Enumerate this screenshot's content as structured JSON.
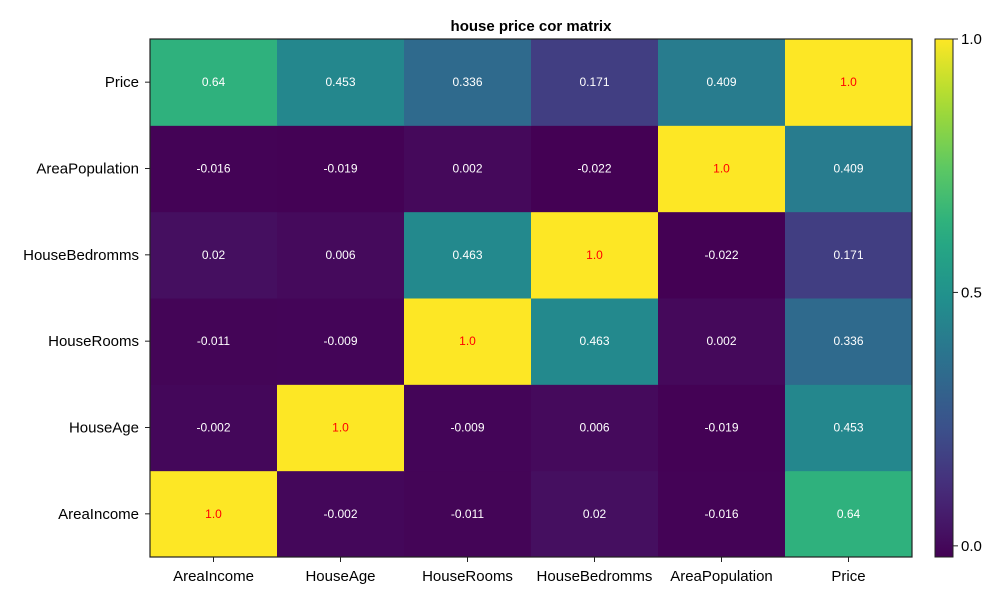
{
  "chart_data": {
    "type": "heatmap",
    "title": "house price cor matrix",
    "x_categories": [
      "AreaIncome",
      "HouseAge",
      "HouseRooms",
      "HouseBedromms",
      "AreaPopulation",
      "Price"
    ],
    "y_categories": [
      "AreaIncome",
      "HouseAge",
      "HouseRooms",
      "HouseBedromms",
      "AreaPopulation",
      "Price"
    ],
    "values": [
      [
        1.0,
        -0.002,
        -0.011,
        0.02,
        -0.016,
        0.64
      ],
      [
        -0.002,
        1.0,
        -0.009,
        0.006,
        -0.019,
        0.453
      ],
      [
        -0.011,
        -0.009,
        1.0,
        0.463,
        0.002,
        0.336
      ],
      [
        0.02,
        0.006,
        0.463,
        1.0,
        -0.022,
        0.171
      ],
      [
        -0.016,
        -0.019,
        0.002,
        -0.022,
        1.0,
        0.409
      ],
      [
        0.64,
        0.453,
        0.336,
        0.171,
        0.409,
        1.0
      ]
    ],
    "value_labels": [
      [
        "1.0",
        "-0.002",
        "-0.011",
        "0.02",
        "-0.016",
        "0.64"
      ],
      [
        "-0.002",
        "1.0",
        "-0.009",
        "0.006",
        "-0.019",
        "0.453"
      ],
      [
        "-0.011",
        "-0.009",
        "1.0",
        "0.463",
        "0.002",
        "0.336"
      ],
      [
        "0.02",
        "0.006",
        "0.463",
        "1.0",
        "-0.022",
        "0.171"
      ],
      [
        "-0.016",
        "-0.019",
        "0.002",
        "-0.022",
        "1.0",
        "0.409"
      ],
      [
        "0.64",
        "0.453",
        "0.336",
        "0.171",
        "0.409",
        "1.0"
      ]
    ],
    "colormap": "viridis",
    "color_range": [
      -0.022,
      1.0
    ],
    "colorbar_ticks": [
      {
        "value": 0.0,
        "label": "0.0"
      },
      {
        "value": 0.5,
        "label": "0.5"
      },
      {
        "value": 1.0,
        "label": "1.0"
      }
    ],
    "diagonal_label_color": "#ff0000",
    "label_color": "#ffffff",
    "grid": false
  }
}
